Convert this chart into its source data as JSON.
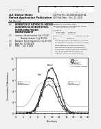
{
  "bg_color": "#f0f0f0",
  "page_bg": "#ffffff",
  "barcode_color": "#111111",
  "header": {
    "left_top": "(12) United States",
    "left_sub": "Patent Application Publication",
    "left_subsub": "(10) Pub. No.: US 2010/0319228 A1",
    "right_top": "(10) Pub. No.: US 2010/0319228 A1",
    "right_sub": "(43) Pub. Date:    Dec. 23, 2010"
  },
  "chart": {
    "x_values": [
      0,
      1,
      2,
      3,
      4,
      5,
      6,
      7,
      8,
      9,
      10,
      11,
      12,
      13,
      14,
      15,
      16,
      17,
      18,
      19,
      20
    ],
    "series": [
      {
        "name": "Feed",
        "color": "#000000",
        "linewidth": 0.7,
        "linestyle": "-",
        "marker": "s",
        "markersize": 1.5,
        "values": [
          0,
          0.01,
          0.03,
          0.08,
          0.2,
          0.6,
          1.8,
          4.0,
          5.8,
          6.5,
          6.2,
          4.8,
          3.0,
          1.4,
          0.5,
          0.18,
          0.06,
          0.02,
          0.005,
          0.002,
          0
        ]
      },
      {
        "name": "Raffinate",
        "color": "#555555",
        "linewidth": 0.6,
        "linestyle": "-",
        "marker": "o",
        "markersize": 1.2,
        "values": [
          0,
          0.008,
          0.02,
          0.06,
          0.18,
          0.55,
          1.6,
          3.5,
          4.8,
          5.2,
          4.8,
          3.6,
          2.1,
          0.9,
          0.3,
          0.1,
          0.03,
          0.01,
          0.003,
          0.001,
          0
        ]
      },
      {
        "name": "Extract",
        "color": "#222222",
        "linewidth": 0.7,
        "linestyle": "-",
        "marker": "^",
        "markersize": 1.5,
        "values": [
          0,
          0.003,
          0.008,
          0.03,
          0.12,
          0.4,
          1.4,
          3.2,
          5.5,
          7.8,
          8.2,
          7.0,
          5.0,
          2.5,
          0.9,
          0.3,
          0.09,
          0.03,
          0.008,
          0.003,
          0
        ]
      },
      {
        "name": "Desorbent",
        "color": "#888888",
        "linewidth": 0.5,
        "linestyle": "--",
        "marker": null,
        "markersize": 0,
        "values": [
          0.4,
          0.4,
          0.4,
          0.4,
          0.4,
          0.4,
          0.4,
          0.4,
          0.4,
          0.4,
          0.4,
          0.4,
          0.4,
          0.4,
          0.4,
          0.4,
          0.4,
          0.4,
          0.4,
          0.4,
          0.4
        ]
      },
      {
        "name": "Column loading",
        "color": "#aaaaaa",
        "linewidth": 0.5,
        "linestyle": "-",
        "marker": null,
        "markersize": 0,
        "values": [
          1.2,
          1.2,
          1.2,
          1.6,
          2.5,
          3.8,
          5.0,
          5.5,
          5.7,
          5.8,
          5.7,
          5.4,
          4.4,
          2.8,
          1.7,
          1.2,
          1.2,
          1.2,
          1.2,
          1.2,
          1.2
        ]
      }
    ],
    "xlabel": "Fractions",
    "ylabel": "Concentration / Absorbance",
    "xlim": [
      0,
      20
    ],
    "ylim": [
      0,
      10
    ],
    "yticks": [
      0,
      2,
      4,
      6,
      8,
      10
    ],
    "xticks": [
      0,
      2,
      4,
      6,
      8,
      10,
      12,
      14,
      16,
      18,
      20
    ],
    "legend_entries": [
      "Feed",
      "Raffinate",
      "Extract",
      "Desorbent",
      "Column loading"
    ]
  }
}
